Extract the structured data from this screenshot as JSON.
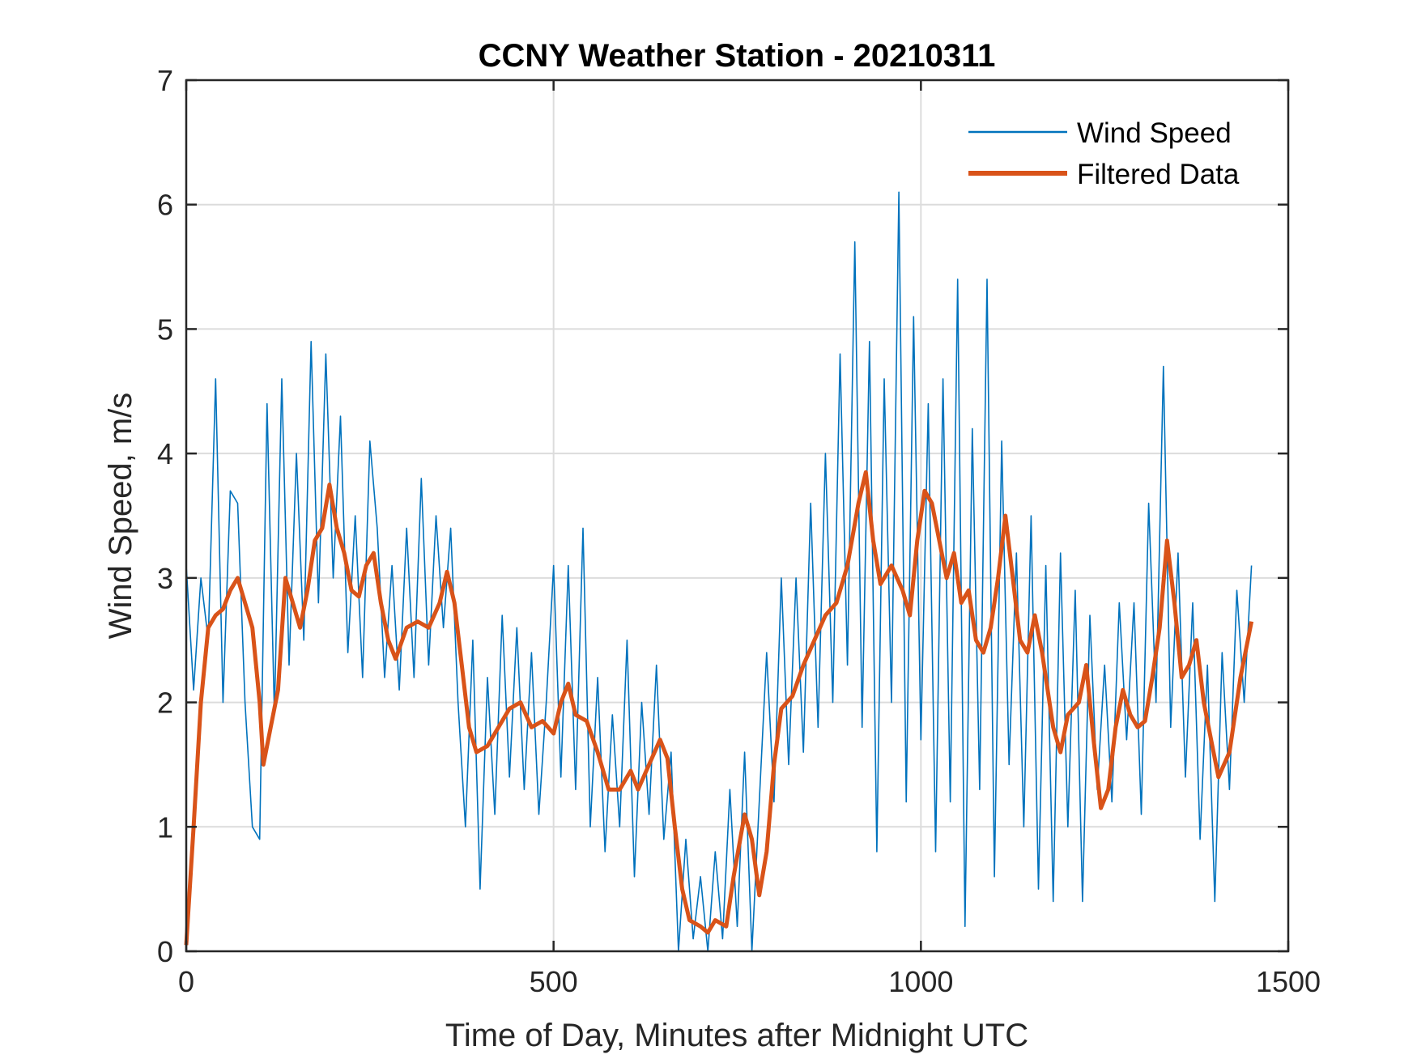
{
  "chart_data": {
    "type": "line",
    "title": "CCNY Weather Station - 20210311",
    "xlabel": "Time of Day, Minutes after Midnight UTC",
    "ylabel": "Wind Speed, m/s",
    "xlim": [
      0,
      1500
    ],
    "ylim": [
      0,
      7
    ],
    "xticks": [
      0,
      500,
      1000,
      1500
    ],
    "yticks": [
      0,
      1,
      2,
      3,
      4,
      5,
      6,
      7
    ],
    "grid": true,
    "legend_position": "top-right",
    "series": [
      {
        "name": "Wind Speed",
        "color": "#0072BD",
        "x_start": 0,
        "x_step": 10,
        "values": [
          3.1,
          2.1,
          3.0,
          2.5,
          4.6,
          2.0,
          3.7,
          3.6,
          2.0,
          1.0,
          0.9,
          4.4,
          1.9,
          4.6,
          2.3,
          4.0,
          2.5,
          4.9,
          2.8,
          4.8,
          3.0,
          4.3,
          2.4,
          3.5,
          2.2,
          4.1,
          3.4,
          2.2,
          3.1,
          2.1,
          3.4,
          2.2,
          3.8,
          2.3,
          3.5,
          2.6,
          3.4,
          2.0,
          1.0,
          2.5,
          0.5,
          2.2,
          1.1,
          2.7,
          1.4,
          2.6,
          1.3,
          2.4,
          1.1,
          2.0,
          3.1,
          1.4,
          3.1,
          1.3,
          3.4,
          1.0,
          2.2,
          0.8,
          1.9,
          1.0,
          2.5,
          0.6,
          2.0,
          1.1,
          2.3,
          0.9,
          1.6,
          0.0,
          0.9,
          0.1,
          0.6,
          0.0,
          0.8,
          0.1,
          1.3,
          0.2,
          1.6,
          0.0,
          1.2,
          2.4,
          1.2,
          3.0,
          1.5,
          3.0,
          1.6,
          3.6,
          1.8,
          4.0,
          2.0,
          4.8,
          2.3,
          5.7,
          1.8,
          4.9,
          0.8,
          4.6,
          2.0,
          6.1,
          1.2,
          5.1,
          1.7,
          4.4,
          0.8,
          4.6,
          1.2,
          5.4,
          0.2,
          4.2,
          1.3,
          5.4,
          0.6,
          4.1,
          1.5,
          3.2,
          1.0,
          3.5,
          0.5,
          3.1,
          0.4,
          3.2,
          1.0,
          2.9,
          0.4,
          2.7,
          1.3,
          2.3,
          1.2,
          2.8,
          1.7,
          2.8,
          1.1,
          3.6,
          2.0,
          4.7,
          1.8,
          3.2,
          1.4,
          2.8,
          0.9,
          2.3,
          0.4,
          2.4,
          1.3,
          2.9,
          2.0,
          3.1
        ]
      },
      {
        "name": "Filtered Data",
        "color": "#D95319",
        "points": [
          [
            0,
            0.05
          ],
          [
            10,
            1.0
          ],
          [
            20,
            2.0
          ],
          [
            30,
            2.6
          ],
          [
            40,
            2.7
          ],
          [
            50,
            2.75
          ],
          [
            60,
            2.9
          ],
          [
            70,
            3.0
          ],
          [
            80,
            2.8
          ],
          [
            90,
            2.6
          ],
          [
            100,
            2.0
          ],
          [
            105,
            1.5
          ],
          [
            115,
            1.8
          ],
          [
            125,
            2.1
          ],
          [
            135,
            3.0
          ],
          [
            145,
            2.8
          ],
          [
            155,
            2.6
          ],
          [
            165,
            2.9
          ],
          [
            175,
            3.3
          ],
          [
            185,
            3.4
          ],
          [
            195,
            3.75
          ],
          [
            205,
            3.4
          ],
          [
            215,
            3.2
          ],
          [
            225,
            2.9
          ],
          [
            235,
            2.85
          ],
          [
            245,
            3.1
          ],
          [
            255,
            3.2
          ],
          [
            265,
            2.8
          ],
          [
            275,
            2.5
          ],
          [
            285,
            2.35
          ],
          [
            300,
            2.6
          ],
          [
            315,
            2.65
          ],
          [
            330,
            2.6
          ],
          [
            345,
            2.8
          ],
          [
            355,
            3.05
          ],
          [
            365,
            2.8
          ],
          [
            375,
            2.3
          ],
          [
            385,
            1.8
          ],
          [
            395,
            1.6
          ],
          [
            410,
            1.65
          ],
          [
            425,
            1.8
          ],
          [
            440,
            1.95
          ],
          [
            455,
            2.0
          ],
          [
            470,
            1.8
          ],
          [
            485,
            1.85
          ],
          [
            500,
            1.75
          ],
          [
            510,
            2.0
          ],
          [
            520,
            2.15
          ],
          [
            530,
            1.9
          ],
          [
            545,
            1.85
          ],
          [
            560,
            1.6
          ],
          [
            575,
            1.3
          ],
          [
            590,
            1.3
          ],
          [
            605,
            1.45
          ],
          [
            615,
            1.3
          ],
          [
            630,
            1.5
          ],
          [
            645,
            1.7
          ],
          [
            655,
            1.55
          ],
          [
            665,
            1.0
          ],
          [
            675,
            0.5
          ],
          [
            685,
            0.25
          ],
          [
            700,
            0.2
          ],
          [
            710,
            0.15
          ],
          [
            720,
            0.25
          ],
          [
            735,
            0.2
          ],
          [
            745,
            0.6
          ],
          [
            760,
            1.1
          ],
          [
            770,
            0.9
          ],
          [
            780,
            0.45
          ],
          [
            790,
            0.8
          ],
          [
            800,
            1.5
          ],
          [
            810,
            1.95
          ],
          [
            825,
            2.05
          ],
          [
            840,
            2.3
          ],
          [
            855,
            2.5
          ],
          [
            870,
            2.7
          ],
          [
            885,
            2.8
          ],
          [
            900,
            3.1
          ],
          [
            915,
            3.6
          ],
          [
            925,
            3.85
          ],
          [
            935,
            3.3
          ],
          [
            945,
            2.95
          ],
          [
            960,
            3.1
          ],
          [
            975,
            2.9
          ],
          [
            985,
            2.7
          ],
          [
            995,
            3.3
          ],
          [
            1005,
            3.7
          ],
          [
            1015,
            3.6
          ],
          [
            1025,
            3.3
          ],
          [
            1035,
            3.0
          ],
          [
            1045,
            3.2
          ],
          [
            1055,
            2.8
          ],
          [
            1065,
            2.9
          ],
          [
            1075,
            2.5
          ],
          [
            1085,
            2.4
          ],
          [
            1095,
            2.6
          ],
          [
            1105,
            3.0
          ],
          [
            1115,
            3.5
          ],
          [
            1125,
            3.0
          ],
          [
            1135,
            2.5
          ],
          [
            1145,
            2.4
          ],
          [
            1155,
            2.7
          ],
          [
            1165,
            2.4
          ],
          [
            1180,
            1.8
          ],
          [
            1190,
            1.6
          ],
          [
            1200,
            1.9
          ],
          [
            1215,
            2.0
          ],
          [
            1225,
            2.3
          ],
          [
            1235,
            1.7
          ],
          [
            1245,
            1.15
          ],
          [
            1255,
            1.3
          ],
          [
            1265,
            1.8
          ],
          [
            1275,
            2.1
          ],
          [
            1285,
            1.9
          ],
          [
            1295,
            1.8
          ],
          [
            1305,
            1.85
          ],
          [
            1315,
            2.2
          ],
          [
            1325,
            2.6
          ],
          [
            1335,
            3.3
          ],
          [
            1345,
            2.8
          ],
          [
            1355,
            2.2
          ],
          [
            1365,
            2.3
          ],
          [
            1375,
            2.5
          ],
          [
            1385,
            2.0
          ],
          [
            1395,
            1.7
          ],
          [
            1405,
            1.4
          ],
          [
            1420,
            1.6
          ],
          [
            1435,
            2.2
          ],
          [
            1450,
            2.65
          ]
        ]
      }
    ]
  }
}
